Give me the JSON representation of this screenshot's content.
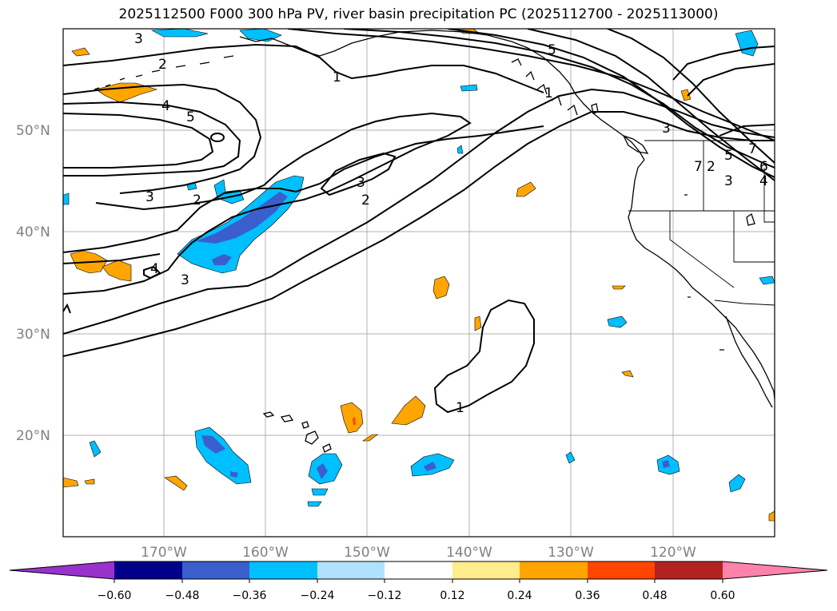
{
  "title": "2025112500 F000 300 hPa PV, river basin precipitation PC (2025112700 - 2025113000)",
  "lat_labels": [
    "50°N",
    "40°N",
    "30°N",
    "20°N"
  ],
  "lon_labels": [
    "170°W",
    "160°W",
    "150°W",
    "140°W",
    "130°W",
    "120°W"
  ],
  "colorbar": {
    "tick_labels": [
      "−0.60",
      "−0.48",
      "−0.36",
      "−0.24",
      "−0.12",
      "0.12",
      "0.24",
      "0.36",
      "0.48",
      "0.60"
    ],
    "colors": [
      "#9932cc",
      "#00008b",
      "#3a5fcd",
      "#00bfff",
      "#b0e2ff",
      "#ffffff",
      "#ffec8b",
      "#ffa500",
      "#ff4500",
      "#b22222",
      "#ff82ab"
    ]
  },
  "contour_labels": [
    "3",
    "2",
    "4",
    "5",
    "1",
    "5",
    "3",
    "2",
    "4",
    "3",
    "1",
    "7",
    "5",
    "6",
    "7",
    "2",
    "3",
    "3",
    "2",
    "4",
    "3",
    "1"
  ],
  "colors": {
    "pv_contour": "#000000",
    "coast": "#000000",
    "grid": "#b0b0b0",
    "neg_light": "#00bfff",
    "neg_dark": "#3a5fcd",
    "pos": "#ffa500"
  }
}
